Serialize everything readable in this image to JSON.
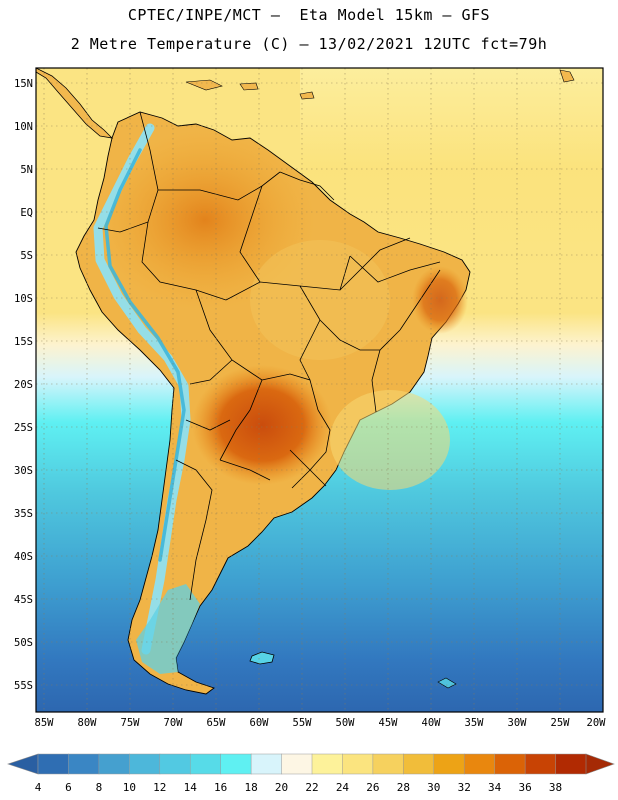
{
  "header": {
    "line1": "CPTEC/INPE/MCT –  Eta Model 15km – GFS",
    "line2": "2 Metre Temperature (C) – 13/02/2021 12UTC fct=79h"
  },
  "map": {
    "lat_labels": [
      "15N",
      "10N",
      "5N",
      "EQ",
      "5S",
      "10S",
      "15S",
      "20S",
      "25S",
      "30S",
      "35S",
      "40S",
      "45S",
      "50S",
      "55S"
    ],
    "lon_labels": [
      "85W",
      "80W",
      "75W",
      "70W",
      "65W",
      "60W",
      "55W",
      "50W",
      "45W",
      "40W",
      "35W",
      "30W",
      "25W",
      "20W"
    ],
    "lat_range": [
      17,
      -57.5
    ],
    "lon_range": [
      -86,
      -20
    ]
  },
  "colorbar": {
    "values": [
      4,
      6,
      8,
      10,
      12,
      14,
      16,
      18,
      20,
      22,
      24,
      26,
      28,
      30,
      32,
      34,
      36,
      38
    ],
    "colors": [
      "#2f6eb3",
      "#3a86c4",
      "#45a0cf",
      "#4db7da",
      "#52c9e2",
      "#57dbe8",
      "#5ff0f2",
      "#d8f4fb",
      "#fdf6e4",
      "#fdf29a",
      "#fbe47f",
      "#f6d15e",
      "#f1bd3a",
      "#eda316",
      "#e9870e",
      "#db6306",
      "#c84304",
      "#b12a02"
    ],
    "left_color": "#2a5fa2",
    "right_color": "#a52a05"
  }
}
